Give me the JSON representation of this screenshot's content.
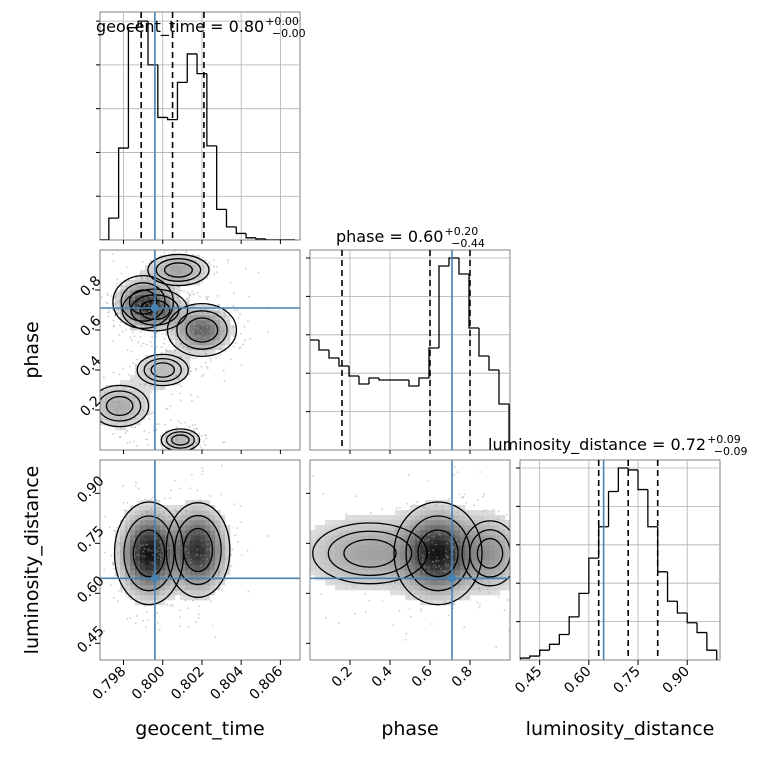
{
  "figure": {
    "type": "corner-plot"
  },
  "chart_data": [
    {
      "type": "histogram",
      "panel": "geocent_time",
      "title": {
        "base": "geocent_time = 0.80",
        "sup": "+0.00",
        "sub": "−0.00"
      },
      "x": [
        0.797,
        0.7975,
        0.798,
        0.7985,
        0.799,
        0.7995,
        0.8,
        0.8005,
        0.801,
        0.8015,
        0.802,
        0.8025,
        0.803,
        0.8035,
        0.804,
        0.8045,
        0.805,
        0.8055,
        0.806,
        0.8065
      ],
      "values": [
        0.0,
        0.1,
        0.42,
        0.97,
        1.0,
        0.8,
        0.56,
        0.55,
        0.72,
        0.85,
        0.76,
        0.43,
        0.14,
        0.06,
        0.03,
        0.01,
        0.005,
        0.0,
        0.0,
        0.0
      ],
      "xlim": [
        0.7968,
        0.807
      ],
      "quantiles": [
        0.7989,
        0.8005,
        0.8021
      ],
      "truth": 0.7996,
      "grid": true
    },
    {
      "type": "histogram",
      "panel": "phase",
      "title": {
        "base": "phase = 0.60",
        "sup": "+0.20",
        "sub": "−0.44"
      },
      "x": [
        0.02,
        0.07,
        0.12,
        0.17,
        0.22,
        0.27,
        0.32,
        0.37,
        0.42,
        0.47,
        0.52,
        0.57,
        0.62,
        0.67,
        0.72,
        0.77,
        0.82,
        0.87,
        0.92,
        0.97
      ],
      "values": [
        0.55,
        0.5,
        0.46,
        0.42,
        0.37,
        0.33,
        0.36,
        0.35,
        0.35,
        0.35,
        0.32,
        0.36,
        0.51,
        0.92,
        0.96,
        0.88,
        0.61,
        0.47,
        0.4,
        0.23
      ],
      "xlim": [
        0.0,
        1.0
      ],
      "quantiles": [
        0.16,
        0.6,
        0.8
      ],
      "truth": 0.71,
      "grid": true
    },
    {
      "type": "histogram",
      "panel": "luminosity_distance",
      "title": {
        "base": "luminosity_distance = 0.72",
        "sup": "+0.09",
        "sub": "−0.09"
      },
      "x": [
        0.405,
        0.435,
        0.465,
        0.495,
        0.525,
        0.555,
        0.585,
        0.615,
        0.645,
        0.675,
        0.705,
        0.735,
        0.765,
        0.795,
        0.825,
        0.855,
        0.885,
        0.915,
        0.945,
        0.975
      ],
      "values": [
        0.01,
        0.02,
        0.05,
        0.08,
        0.13,
        0.22,
        0.34,
        0.52,
        0.68,
        0.86,
        0.98,
        0.97,
        0.87,
        0.68,
        0.45,
        0.3,
        0.24,
        0.19,
        0.14,
        0.05
      ],
      "xlim": [
        0.39,
        1.0
      ],
      "quantiles": [
        0.63,
        0.72,
        0.81
      ],
      "truth": 0.645,
      "grid": true
    },
    {
      "type": "contour",
      "panel": "phase vs geocent_time",
      "xlim": [
        0.7968,
        0.807
      ],
      "ylim": [
        0.0,
        1.0
      ],
      "truth": [
        0.7996,
        0.71
      ],
      "modes": [
        {
          "x": 0.799,
          "y": 0.74,
          "sx": 0.0007,
          "sy": 0.06,
          "w": 1.0
        },
        {
          "x": 0.7996,
          "y": 0.7,
          "sx": 0.0008,
          "sy": 0.05,
          "w": 0.9
        },
        {
          "x": 0.802,
          "y": 0.6,
          "sx": 0.0008,
          "sy": 0.06,
          "w": 1.0
        },
        {
          "x": 0.8008,
          "y": 0.9,
          "sx": 0.001,
          "sy": 0.05,
          "w": 0.5
        },
        {
          "x": 0.8,
          "y": 0.4,
          "sx": 0.001,
          "sy": 0.06,
          "w": 0.35
        },
        {
          "x": 0.7978,
          "y": 0.22,
          "sx": 0.001,
          "sy": 0.07,
          "w": 0.45
        },
        {
          "x": 0.8009,
          "y": 0.05,
          "sx": 0.0007,
          "sy": 0.04,
          "w": 0.4
        }
      ]
    },
    {
      "type": "contour",
      "panel": "luminosity_distance vs geocent_time",
      "xlim": [
        0.7968,
        0.807
      ],
      "ylim": [
        0.4,
        1.0
      ],
      "truth": [
        0.7996,
        0.645
      ],
      "modes": [
        {
          "x": 0.7993,
          "y": 0.72,
          "sx": 0.0008,
          "sy": 0.07,
          "w": 1.0
        },
        {
          "x": 0.8018,
          "y": 0.73,
          "sx": 0.0008,
          "sy": 0.07,
          "w": 0.85
        }
      ]
    },
    {
      "type": "contour",
      "panel": "luminosity_distance vs phase",
      "xlim": [
        0.0,
        1.0
      ],
      "ylim": [
        0.4,
        1.0
      ],
      "truth": [
        0.71,
        0.645
      ],
      "modes": [
        {
          "x": 0.64,
          "y": 0.72,
          "sx": 0.1,
          "sy": 0.07,
          "w": 1.0
        },
        {
          "x": 0.3,
          "y": 0.72,
          "sx": 0.22,
          "sy": 0.07,
          "w": 0.35
        },
        {
          "x": 0.9,
          "y": 0.72,
          "sx": 0.1,
          "sy": 0.07,
          "w": 0.4
        }
      ]
    }
  ],
  "axes": {
    "geocent_time": {
      "label": "geocent_time",
      "ticks": [
        0.798,
        0.8,
        0.802,
        0.804,
        0.806
      ],
      "tick_labels": [
        "0.798",
        "0.800",
        "0.802",
        "0.804",
        "0.806"
      ]
    },
    "phase": {
      "label": "phase",
      "ticks": [
        0.2,
        0.4,
        0.6,
        0.8
      ],
      "tick_labels": [
        "0.2",
        "0.4",
        "0.6",
        "0.8"
      ]
    },
    "luminosity_distance": {
      "label": "luminosity_distance",
      "ticks": [
        0.45,
        0.6,
        0.75,
        0.9
      ],
      "tick_labels": [
        "0.45",
        "0.60",
        "0.75",
        "0.90"
      ]
    }
  },
  "colors": {
    "truth": "#4682b4",
    "hist": "#000000",
    "quantile": "#000000",
    "grid": "#b0b0b0",
    "frame": "#808080"
  }
}
